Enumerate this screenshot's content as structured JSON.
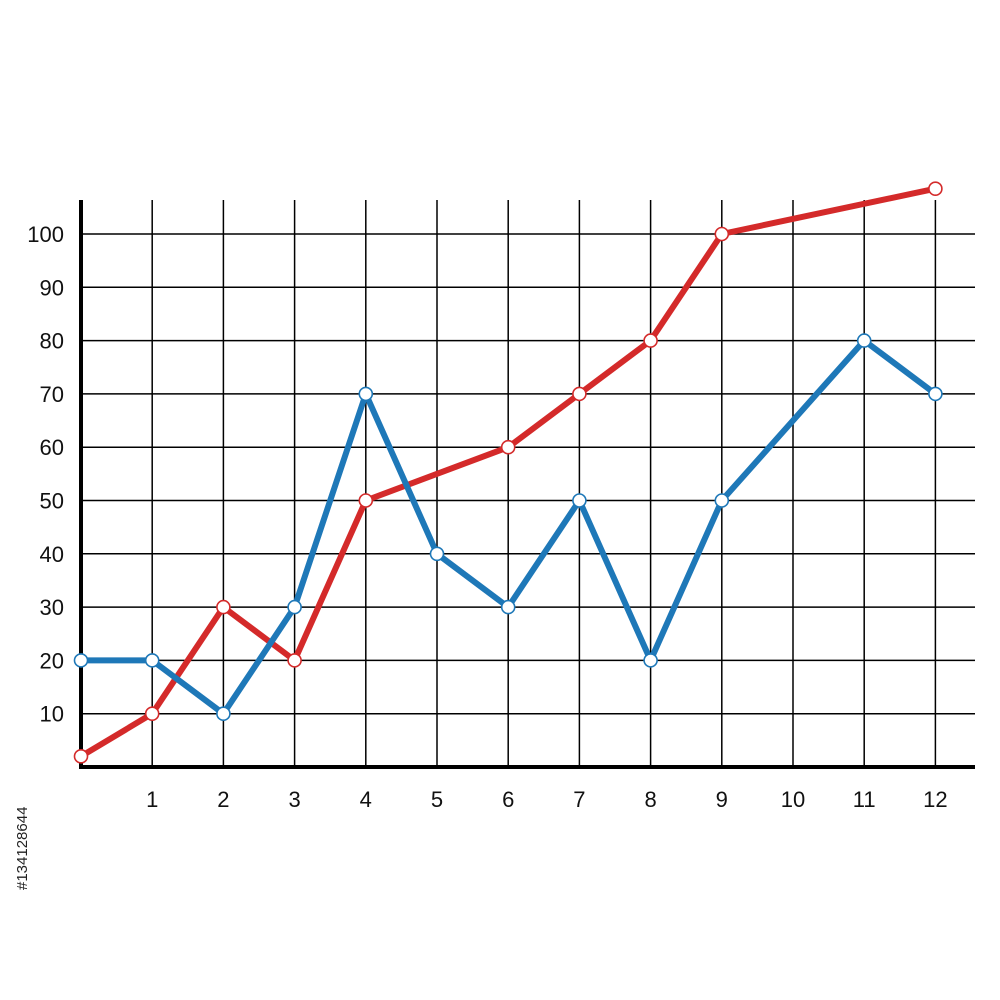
{
  "chart_data": {
    "type": "line",
    "title": "",
    "xlabel": "",
    "ylabel": "",
    "x": [
      0,
      1,
      2,
      3,
      4,
      5,
      6,
      7,
      8,
      9,
      10,
      11,
      12
    ],
    "x_tick_labels": [
      "1",
      "2",
      "3",
      "4",
      "5",
      "6",
      "7",
      "8",
      "9",
      "10",
      "11",
      "12"
    ],
    "y_tick_labels": [
      "10",
      "20",
      "30",
      "40",
      "50",
      "60",
      "70",
      "80",
      "90",
      "100"
    ],
    "xlim": [
      0,
      12.6
    ],
    "ylim": [
      0,
      107
    ],
    "grid": true,
    "legend": "none",
    "series": [
      {
        "color": "#d42a2a",
        "x": [
          0,
          1,
          2,
          3,
          4,
          6,
          7,
          8,
          9,
          12
        ],
        "values": [
          2,
          10,
          30,
          20,
          50,
          60,
          70,
          80,
          100,
          108.5
        ]
      },
      {
        "color": "#1e78b8",
        "x": [
          0,
          1,
          2,
          3,
          4,
          5,
          6,
          7,
          8,
          9,
          11,
          12
        ],
        "values": [
          20,
          20,
          10,
          30,
          70,
          40,
          30,
          50,
          20,
          50,
          80,
          70
        ]
      }
    ]
  },
  "watermark_id": "#134128644"
}
